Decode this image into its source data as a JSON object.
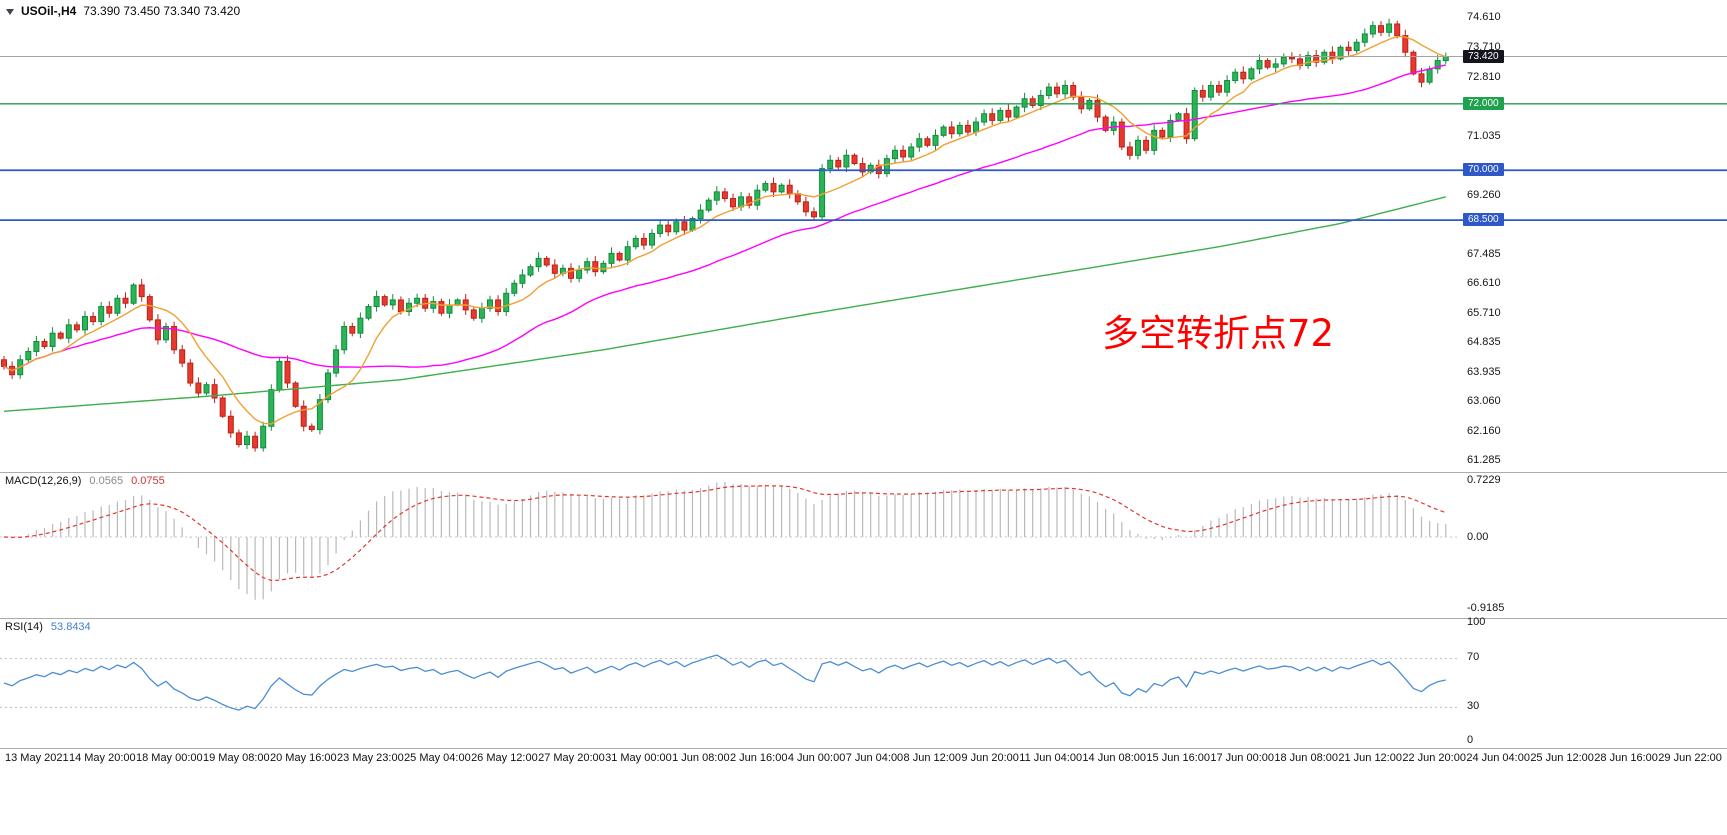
{
  "title": {
    "symbol": "USOil-,H4",
    "ohlc": "73.390 73.450 73.340 73.420"
  },
  "panes": {
    "macd": {
      "label": "MACD(12,26,9)",
      "value1": "0.0565",
      "value2": "0.0755",
      "axis_top": "0.7229",
      "axis_zero": "0.00",
      "axis_bottom": "-0.9185"
    },
    "rsi": {
      "label": "RSI(14)",
      "value": "53.8434",
      "axis": [
        "100",
        "70",
        "30",
        "0"
      ]
    }
  },
  "chart_data": {
    "type": "candlestick",
    "symbol": "USOil",
    "timeframe": "H4",
    "current": {
      "open": 73.39,
      "high": 73.45,
      "low": 73.34,
      "close": 73.42
    },
    "annotation": {
      "text": "多空转折点72",
      "color": "#ff0000"
    },
    "first_open": 64.3,
    "closes": [
      64.1,
      63.85,
      64.3,
      64.55,
      64.85,
      64.7,
      65.1,
      64.95,
      65.35,
      65.2,
      65.6,
      65.45,
      65.9,
      65.7,
      66.15,
      66.0,
      66.55,
      66.2,
      65.5,
      64.9,
      65.3,
      64.6,
      64.2,
      63.6,
      63.3,
      63.55,
      63.15,
      62.6,
      62.1,
      61.75,
      62.0,
      61.65,
      62.3,
      63.4,
      64.25,
      63.6,
      62.9,
      62.3,
      62.2,
      63.1,
      63.9,
      64.6,
      65.3,
      65.1,
      65.55,
      65.9,
      66.2,
      65.95,
      66.1,
      65.75,
      66.0,
      66.15,
      65.85,
      66.05,
      65.7,
      65.95,
      66.1,
      65.8,
      65.55,
      65.85,
      66.1,
      65.75,
      66.3,
      66.6,
      66.85,
      67.1,
      67.35,
      67.15,
      66.9,
      67.05,
      66.75,
      67.0,
      67.25,
      66.95,
      67.2,
      67.5,
      67.3,
      67.7,
      67.95,
      67.75,
      68.1,
      68.35,
      68.15,
      68.45,
      68.2,
      68.55,
      68.8,
      69.1,
      69.35,
      69.15,
      68.9,
      69.2,
      68.95,
      69.4,
      69.6,
      69.35,
      69.55,
      69.3,
      69.05,
      68.75,
      68.6,
      70.05,
      70.3,
      70.1,
      70.45,
      70.2,
      69.95,
      70.15,
      69.9,
      70.35,
      70.6,
      70.4,
      70.7,
      70.95,
      70.75,
      71.05,
      71.3,
      71.1,
      71.35,
      71.15,
      71.45,
      71.7,
      71.5,
      71.8,
      71.6,
      71.9,
      72.15,
      71.95,
      72.25,
      72.5,
      72.3,
      72.55,
      72.2,
      71.85,
      72.1,
      71.6,
      71.2,
      71.45,
      70.7,
      70.45,
      70.9,
      70.6,
      71.2,
      71.0,
      71.5,
      71.7,
      70.95,
      72.4,
      72.2,
      72.55,
      72.35,
      72.7,
      72.95,
      72.75,
      73.05,
      73.3,
      73.1,
      73.2,
      73.4,
      73.35,
      73.15,
      73.45,
      73.25,
      73.55,
      73.35,
      73.7,
      73.6,
      73.85,
      74.1,
      74.35,
      74.15,
      74.4,
      74.05,
      73.55,
      72.9,
      72.65,
      73.05,
      73.3,
      73.42
    ],
    "price_axis_labels": [
      "74.610",
      "73.710",
      "72.810",
      "71.035",
      "69.260",
      "67.485",
      "66.610",
      "65.710",
      "64.835",
      "63.935",
      "63.060",
      "62.160",
      "61.285"
    ],
    "price_badges": [
      {
        "text": "73.420",
        "price": 73.42,
        "color": "#14151f"
      },
      {
        "text": "72.000",
        "price": 72.0,
        "color": "#1fa14d"
      },
      {
        "text": "70.000",
        "price": 70.0,
        "color": "#2e58c8"
      },
      {
        "text": "68.500",
        "price": 68.5,
        "color": "#2e58c8"
      }
    ],
    "horizontal_lines": [
      {
        "price": 73.42,
        "color": "#a3a3a3",
        "width": 1
      },
      {
        "price": 72.0,
        "color": "#1fa14d",
        "width": 1.4
      },
      {
        "price": 70.0,
        "color": "#2e58c8",
        "width": 1.7
      },
      {
        "price": 68.5,
        "color": "#2e58c8",
        "width": 1.7
      }
    ],
    "moving_averages": {
      "fast": {
        "period": 8,
        "color": "#f0a132"
      },
      "mid": {
        "period": 34,
        "color": "#ff00ff"
      },
      "long": {
        "color": "#3fae4a",
        "waypoints": [
          [
            0,
            62.75
          ],
          [
            25,
            63.2
          ],
          [
            49,
            63.7
          ],
          [
            74,
            64.6
          ],
          [
            100,
            65.7
          ],
          [
            125,
            66.7
          ],
          [
            150,
            67.7
          ],
          [
            165,
            68.4
          ],
          [
            178,
            69.2
          ]
        ]
      }
    },
    "macd_config": {
      "fast": 12,
      "slow": 26,
      "signal_period": 9,
      "hist_color": "#b9b9b9",
      "signal_color": "#e0382e"
    },
    "rsi_config": {
      "period": 14,
      "color": "#4b8ed3",
      "levels": [
        70,
        30
      ]
    },
    "candle_colors": {
      "up_fill": "#2ab557",
      "up_stroke": "#118a3e",
      "down_fill": "#e8392e",
      "down_stroke": "#bc2218"
    },
    "time_labels": [
      "13 May 2021",
      "14 May 20:00",
      "18 May 00:00",
      "19 May 08:00",
      "20 May 16:00",
      "23 May 23:00",
      "25 May 04:00",
      "26 May 12:00",
      "27 May 20:00",
      "31 May 00:00",
      "1 Jun 08:00",
      "2 Jun 16:00",
      "4 Jun 00:00",
      "7 Jun 04:00",
      "8 Jun 12:00",
      "9 Jun 20:00",
      "11 Jun 04:00",
      "14 Jun 08:00",
      "15 Jun 16:00",
      "17 Jun 00:00",
      "18 Jun 08:00",
      "21 Jun 12:00",
      "22 Jun 20:00",
      "24 Jun 04:00",
      "25 Jun 12:00",
      "28 Jun 16:00",
      "29 Jun 22:00"
    ]
  }
}
